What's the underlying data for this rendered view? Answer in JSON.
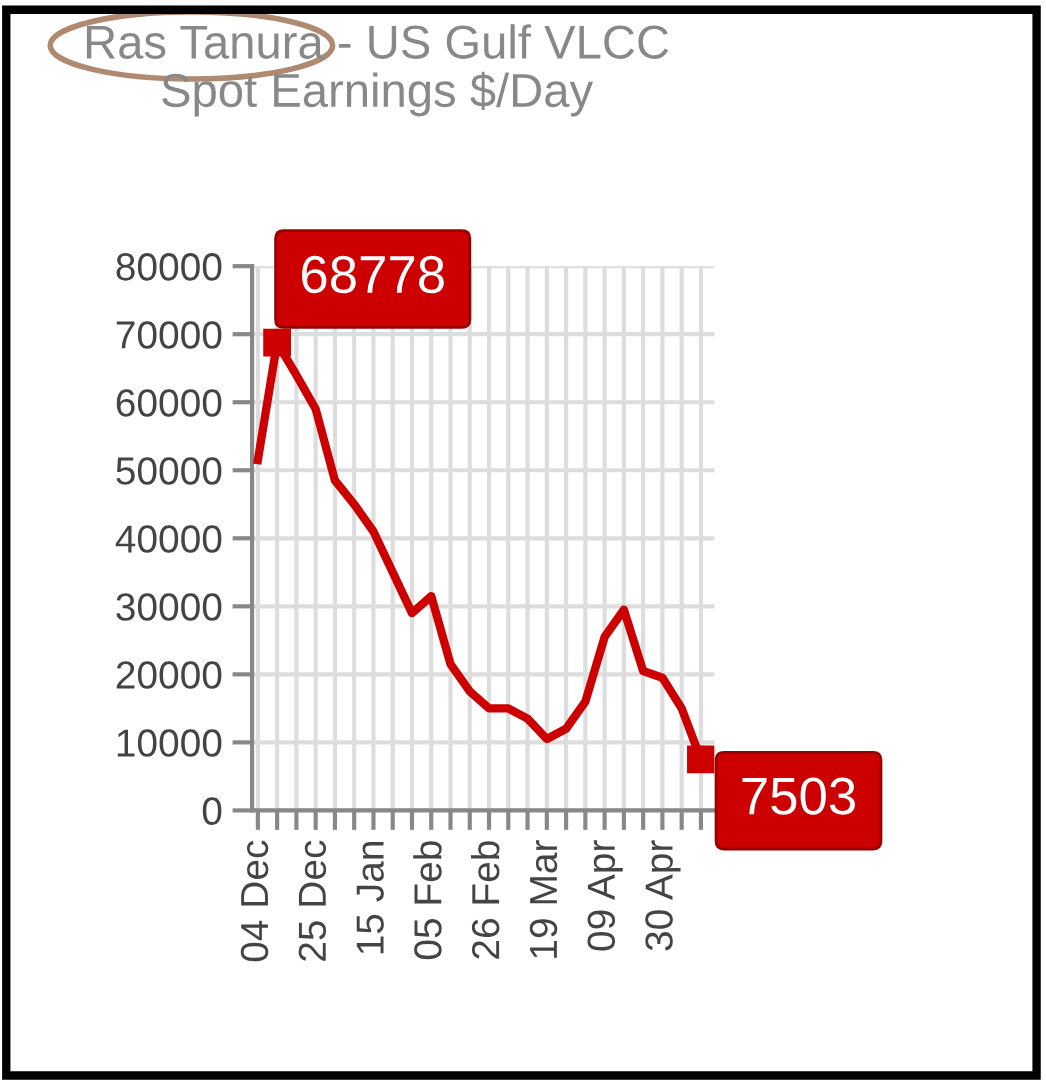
{
  "chart_data": {
    "type": "line",
    "title": "Ras Tanura - US Gulf VLCC\nSpot Earnings $/Day",
    "categories": [
      "04 Dec",
      null,
      null,
      "25 Dec",
      null,
      null,
      "15 Jan",
      null,
      null,
      "05 Feb",
      null,
      null,
      "26 Feb",
      null,
      null,
      "19 Mar",
      null,
      null,
      "09 Apr",
      null,
      null,
      "30 Apr",
      null,
      null
    ],
    "series": [
      {
        "color": "#cc0000",
        "values": [
          51500,
          68778,
          64000,
          59000,
          48500,
          45000,
          41000,
          35000,
          29000,
          31500,
          21500,
          17500,
          15000,
          15000,
          13500,
          10500,
          12000,
          16000,
          25500,
          29500,
          20500,
          19500,
          15000,
          7503
        ],
        "value_labels": [
          null,
          "68778",
          null,
          null,
          null,
          null,
          null,
          null,
          null,
          null,
          null,
          null,
          null,
          null,
          null,
          null,
          null,
          null,
          null,
          null,
          null,
          null,
          null,
          "7503"
        ]
      }
    ],
    "ylim": [
      0,
      80000
    ],
    "yticks": [
      0,
      10000,
      20000,
      30000,
      40000,
      50000,
      60000,
      70000,
      80000
    ],
    "grid": true,
    "line_style": "solid"
  }
}
